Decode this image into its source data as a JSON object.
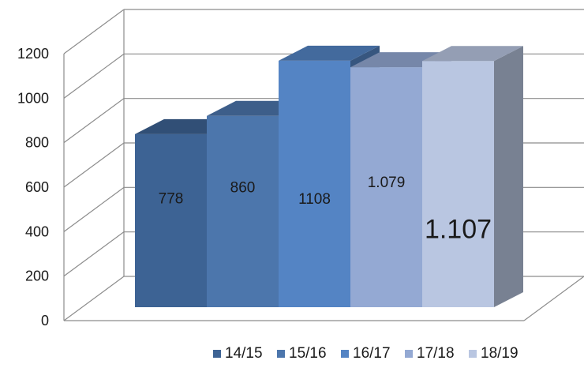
{
  "chart_data": {
    "type": "bar",
    "title": "",
    "xlabel": "",
    "ylabel": "",
    "ylim": [
      0,
      1200
    ],
    "yticks": [
      "0",
      "200",
      "400",
      "600",
      "800",
      "1000",
      "1200"
    ],
    "grid": true,
    "legend_position": "bottom",
    "categories": [
      "14/15",
      "15/16",
      "16/17",
      "17/18",
      "18/19"
    ],
    "values": [
      778,
      860,
      1108,
      1079,
      1107
    ],
    "data_labels": [
      "778",
      "860",
      "1108",
      "1.079",
      "1.107"
    ],
    "colors": [
      "#3d6394",
      "#4c76ac",
      "#5484c4",
      "#94a9d3",
      "#b9c6e1"
    ]
  }
}
